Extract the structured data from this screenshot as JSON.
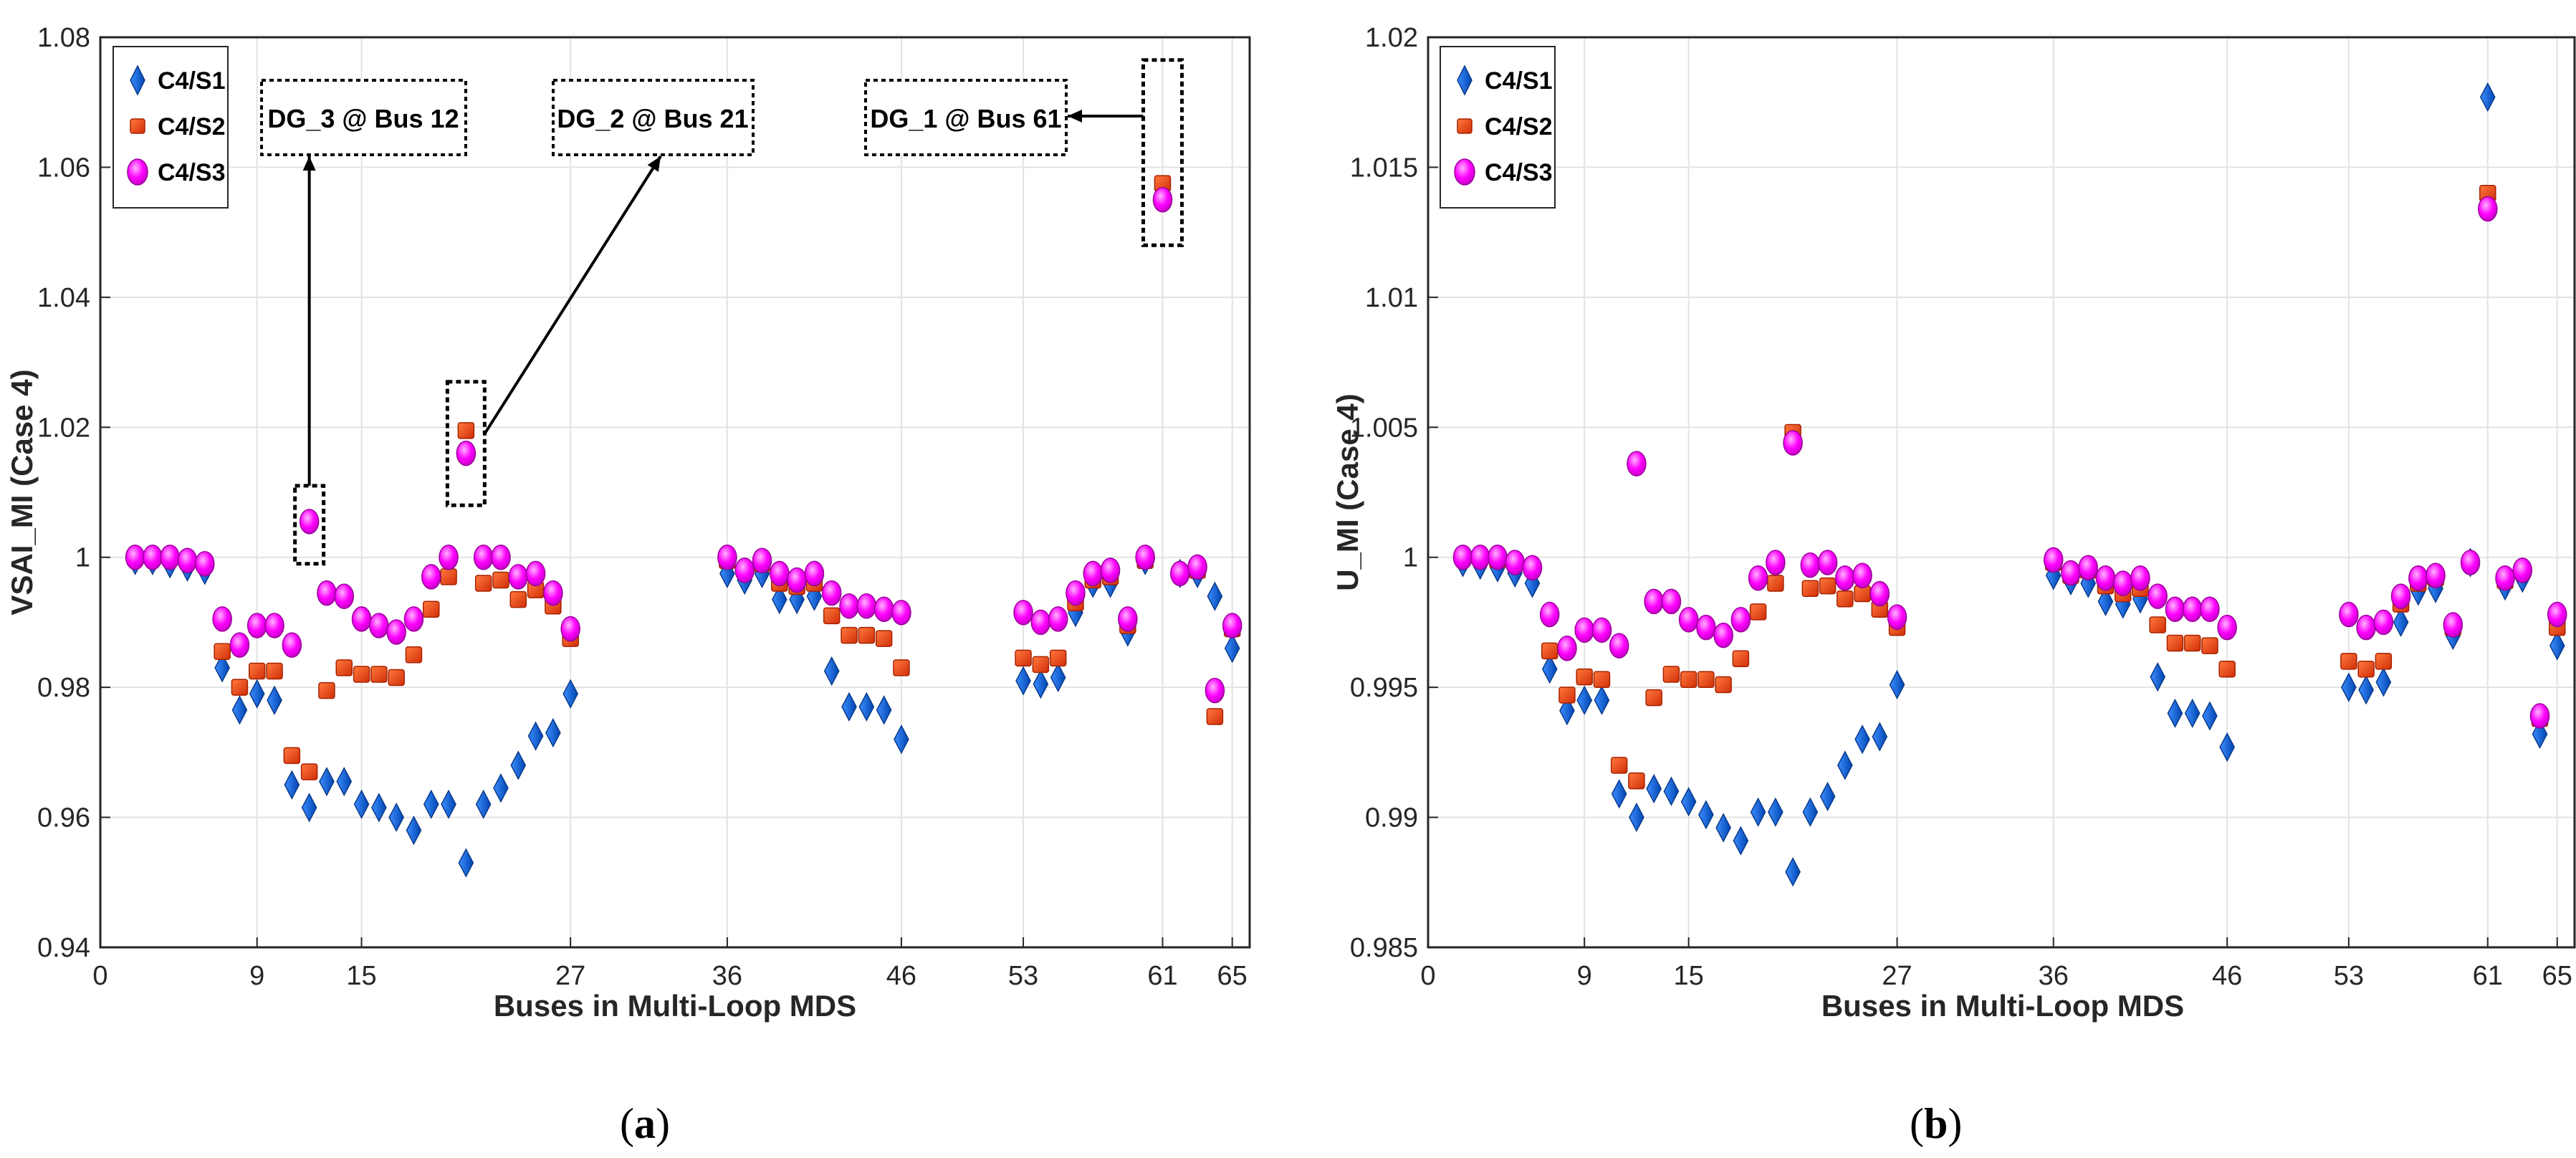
{
  "chart_data": [
    {
      "type": "scatter",
      "panel_label": "a",
      "xlabel": "Buses in Multi-Loop MDS",
      "ylabel": "VSAI_MI (Case 4)",
      "xlim": [
        0,
        66
      ],
      "ylim": [
        0.94,
        1.08
      ],
      "xticks": [
        0,
        9,
        15,
        27,
        36,
        46,
        53,
        61,
        65
      ],
      "yticks": [
        0.94,
        0.96,
        0.98,
        1.0,
        1.02,
        1.04,
        1.06,
        1.08
      ],
      "ytick_labels": [
        "0.94",
        "0.96",
        "0.98",
        "1",
        "1.02",
        "1.04",
        "1.06",
        "1.08"
      ],
      "grid": true,
      "legend_position": "top-left",
      "series": [
        {
          "name": "C4/S1",
          "marker": "diamond",
          "color": "#0a5fd6",
          "x": [
            2,
            3,
            4,
            5,
            6,
            7,
            8,
            9,
            10,
            11,
            12,
            13,
            14,
            15,
            16,
            17,
            18,
            19,
            20,
            21,
            22,
            23,
            24,
            25,
            26,
            27,
            36,
            37,
            38,
            39,
            40,
            41,
            42,
            43,
            44,
            45,
            46,
            53,
            54,
            55,
            56,
            57,
            58,
            59,
            60,
            62,
            63,
            64,
            65
          ],
          "y": [
            0.9995,
            0.9995,
            0.999,
            0.9985,
            0.998,
            0.983,
            0.9765,
            0.979,
            0.978,
            0.965,
            0.9615,
            0.9655,
            0.9655,
            0.962,
            0.9615,
            0.96,
            0.958,
            0.962,
            0.962,
            0.953,
            0.962,
            0.9645,
            0.968,
            0.9725,
            0.973,
            0.979,
            0.9975,
            0.9965,
            0.9975,
            0.9935,
            0.9935,
            0.994,
            0.9825,
            0.977,
            0.977,
            0.9765,
            0.972,
            0.981,
            0.9805,
            0.9815,
            0.9915,
            0.996,
            0.996,
            0.9885,
            0.9995,
            0.9975,
            0.9975,
            0.994,
            0.986
          ]
        },
        {
          "name": "C4/S2",
          "marker": "square",
          "color": "#e8401a",
          "x": [
            2,
            3,
            4,
            5,
            6,
            7,
            8,
            9,
            10,
            11,
            12,
            13,
            14,
            15,
            16,
            17,
            18,
            19,
            20,
            21,
            22,
            23,
            24,
            25,
            26,
            27,
            36,
            37,
            38,
            39,
            40,
            41,
            42,
            43,
            44,
            45,
            46,
            53,
            54,
            55,
            56,
            57,
            58,
            59,
            60,
            61,
            62,
            63,
            64,
            65
          ],
          "y": [
            1.0,
            1.0,
            1.0,
            0.9995,
            0.999,
            0.9855,
            0.98,
            0.9825,
            0.9825,
            0.9695,
            0.967,
            0.9795,
            0.983,
            0.982,
            0.982,
            0.9815,
            0.985,
            0.992,
            0.997,
            1.0195,
            0.996,
            0.9965,
            0.9935,
            0.995,
            0.9925,
            0.9875,
            0.9995,
            0.998,
            0.999,
            0.996,
            0.9955,
            0.996,
            0.991,
            0.988,
            0.988,
            0.9875,
            0.983,
            0.9845,
            0.9835,
            0.9845,
            0.993,
            0.9965,
            0.997,
            0.9895,
            0.9995,
            1.0575,
            0.9975,
            0.998,
            0.9755,
            0.989
          ]
        },
        {
          "name": "C4/S3",
          "marker": "circle",
          "color": "#ff00ff",
          "x": [
            2,
            3,
            4,
            5,
            6,
            7,
            8,
            9,
            10,
            11,
            12,
            13,
            14,
            15,
            16,
            17,
            18,
            19,
            20,
            21,
            22,
            23,
            24,
            25,
            26,
            27,
            36,
            37,
            38,
            39,
            40,
            41,
            42,
            43,
            44,
            45,
            46,
            53,
            54,
            55,
            56,
            57,
            58,
            59,
            60,
            61,
            62,
            63,
            64,
            65
          ],
          "y": [
            1.0,
            1.0,
            1.0,
            0.9995,
            0.999,
            0.9905,
            0.9865,
            0.9895,
            0.9895,
            0.9865,
            1.0055,
            0.9945,
            0.994,
            0.9905,
            0.9895,
            0.9885,
            0.9905,
            0.997,
            1.0,
            1.016,
            1.0,
            1.0,
            0.997,
            0.9975,
            0.9945,
            0.989,
            1.0,
            0.998,
            0.9995,
            0.9975,
            0.9965,
            0.9975,
            0.9945,
            0.9925,
            0.9925,
            0.992,
            0.9915,
            0.9915,
            0.99,
            0.9905,
            0.9945,
            0.9975,
            0.998,
            0.9905,
            1.0,
            1.055,
            0.9975,
            0.9985,
            0.9795,
            0.9895
          ]
        }
      ],
      "annotations": [
        {
          "text": "DG_3 @ Bus 12",
          "bus": 12,
          "value": 1.0055
        },
        {
          "text": "DG_2 @ Bus 21",
          "bus": 21,
          "value": 1.018
        },
        {
          "text": "DG_1 @ Bus 61",
          "bus": 61,
          "value": 1.06
        }
      ]
    },
    {
      "type": "scatter",
      "panel_label": "b",
      "xlabel": "Buses in Multi-Loop MDS",
      "ylabel": "U_MI (Case 4)",
      "xlim": [
        0,
        66
      ],
      "ylim": [
        0.985,
        1.02
      ],
      "xticks": [
        0,
        9,
        15,
        27,
        36,
        46,
        53,
        61,
        65
      ],
      "yticks": [
        0.985,
        0.99,
        0.995,
        1.0,
        1.005,
        1.01,
        1.015,
        1.02
      ],
      "ytick_labels": [
        "0.985",
        "0.99",
        "0.995",
        "1",
        "1.005",
        "1.01",
        "1.015",
        "1.02"
      ],
      "grid": true,
      "legend_position": "top-left",
      "series": [
        {
          "name": "C4/S1",
          "marker": "diamond",
          "color": "#0a5fd6",
          "x": [
            2,
            3,
            4,
            5,
            6,
            7,
            8,
            9,
            10,
            11,
            12,
            13,
            14,
            15,
            16,
            17,
            18,
            19,
            20,
            21,
            22,
            23,
            24,
            25,
            26,
            27,
            36,
            37,
            38,
            39,
            40,
            41,
            42,
            43,
            44,
            45,
            46,
            53,
            54,
            55,
            56,
            57,
            58,
            59,
            60,
            61,
            62,
            63,
            64,
            65
          ],
          "y": [
            0.9998,
            0.9997,
            0.9996,
            0.9994,
            0.999,
            0.9957,
            0.9941,
            0.9945,
            0.9945,
            0.9909,
            0.99,
            0.9911,
            0.991,
            0.9906,
            0.9901,
            0.9896,
            0.9891,
            0.9902,
            0.9902,
            0.9879,
            0.9902,
            0.9908,
            0.992,
            0.993,
            0.9931,
            0.9951,
            0.9993,
            0.9991,
            0.999,
            0.9983,
            0.9982,
            0.9984,
            0.9954,
            0.994,
            0.994,
            0.9939,
            0.9927,
            0.995,
            0.9949,
            0.9952,
            0.9975,
            0.9987,
            0.9988,
            0.997,
            0.9998,
            1.0177,
            0.9989,
            0.9992,
            0.9932,
            0.9966
          ]
        },
        {
          "name": "C4/S2",
          "marker": "square",
          "color": "#e8401a",
          "x": [
            2,
            3,
            4,
            5,
            6,
            7,
            8,
            9,
            10,
            11,
            12,
            13,
            14,
            15,
            16,
            17,
            18,
            19,
            20,
            21,
            22,
            23,
            24,
            25,
            26,
            27,
            36,
            37,
            38,
            39,
            40,
            41,
            42,
            43,
            44,
            45,
            46,
            53,
            54,
            55,
            56,
            57,
            58,
            59,
            60,
            61,
            62,
            63,
            64,
            65
          ],
          "y": [
            1.0,
            1.0,
            0.9999,
            0.9998,
            0.9996,
            0.9964,
            0.9947,
            0.9954,
            0.9953,
            0.992,
            0.9914,
            0.9946,
            0.9955,
            0.9953,
            0.9953,
            0.9951,
            0.9961,
            0.9979,
            0.999,
            1.0048,
            0.9988,
            0.9989,
            0.9984,
            0.9986,
            0.998,
            0.9973,
            0.9998,
            0.9993,
            0.9995,
            0.9989,
            0.9986,
            0.9988,
            0.9974,
            0.9967,
            0.9967,
            0.9966,
            0.9957,
            0.996,
            0.9957,
            0.996,
            0.9982,
            0.999,
            0.9992,
            0.9973,
            0.9998,
            1.014,
            0.9991,
            0.9995,
            0.9938,
            0.9973
          ]
        },
        {
          "name": "C4/S3",
          "marker": "circle",
          "color": "#ff00ff",
          "x": [
            2,
            3,
            4,
            5,
            6,
            7,
            8,
            9,
            10,
            11,
            12,
            13,
            14,
            15,
            16,
            17,
            18,
            19,
            20,
            21,
            22,
            23,
            24,
            25,
            26,
            27,
            36,
            37,
            38,
            39,
            40,
            41,
            42,
            43,
            44,
            45,
            46,
            53,
            54,
            55,
            56,
            57,
            58,
            59,
            60,
            61,
            62,
            63,
            64,
            65
          ],
          "y": [
            1.0,
            1.0,
            1.0,
            0.9998,
            0.9996,
            0.9978,
            0.9965,
            0.9972,
            0.9972,
            0.9966,
            1.0036,
            0.9983,
            0.9983,
            0.9976,
            0.9973,
            0.997,
            0.9976,
            0.9992,
            0.9998,
            1.0044,
            0.9997,
            0.9998,
            0.9992,
            0.9993,
            0.9986,
            0.9977,
            0.9999,
            0.9994,
            0.9996,
            0.9992,
            0.999,
            0.9992,
            0.9985,
            0.998,
            0.998,
            0.998,
            0.9973,
            0.9978,
            0.9973,
            0.9975,
            0.9985,
            0.9992,
            0.9993,
            0.9974,
            0.9998,
            1.0134,
            0.9992,
            0.9995,
            0.9939,
            0.9978
          ]
        }
      ]
    }
  ],
  "legend": {
    "s1": "C4/S1",
    "s2": "C4/S2",
    "s3": "C4/S3"
  },
  "annotation_labels": {
    "dg3": "DG_3 @ Bus 12",
    "dg2": "DG_2 @ Bus 21",
    "dg1": "DG_1 @ Bus 61"
  },
  "axis_labels": {
    "a_x": "Buses in Multi-Loop MDS",
    "a_y": "VSAI_MI (Case 4)",
    "b_x": "Buses in Multi-Loop MDS",
    "b_y": "U_MI (Case 4)"
  },
  "captions": {
    "a_open": "(",
    "a_letter": "a",
    "a_close": ")",
    "b_open": "(",
    "b_letter": "b",
    "b_close": ")"
  },
  "colors": {
    "s1": "#0a5fd6",
    "s2": "#e8401a",
    "s3": "#ff00ff",
    "grid": "#e3e3e3",
    "axis": "#262626"
  }
}
